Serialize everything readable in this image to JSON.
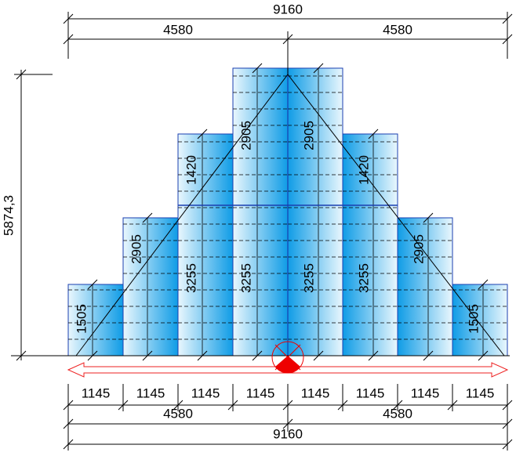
{
  "top_dimensions": {
    "total": "9160",
    "halves": [
      "4580",
      "4580"
    ]
  },
  "height_dimension": "5874,3",
  "columns": [
    {
      "segments": [
        "1505"
      ]
    },
    {
      "segments": [
        "2905"
      ]
    },
    {
      "segments": [
        "3255",
        "1420"
      ]
    },
    {
      "segments": [
        "3255",
        "2905"
      ]
    },
    {
      "segments": [
        "3255",
        "2905"
      ]
    },
    {
      "segments": [
        "3255",
        "1420"
      ]
    },
    {
      "segments": [
        "2905"
      ]
    },
    {
      "segments": [
        "1505"
      ]
    }
  ],
  "bottom_dimensions": {
    "modules": [
      "1145",
      "1145",
      "1145",
      "1145",
      "1145",
      "1145",
      "1145",
      "1145"
    ],
    "halves": [
      "4580",
      "4580"
    ],
    "total": "9160"
  }
}
